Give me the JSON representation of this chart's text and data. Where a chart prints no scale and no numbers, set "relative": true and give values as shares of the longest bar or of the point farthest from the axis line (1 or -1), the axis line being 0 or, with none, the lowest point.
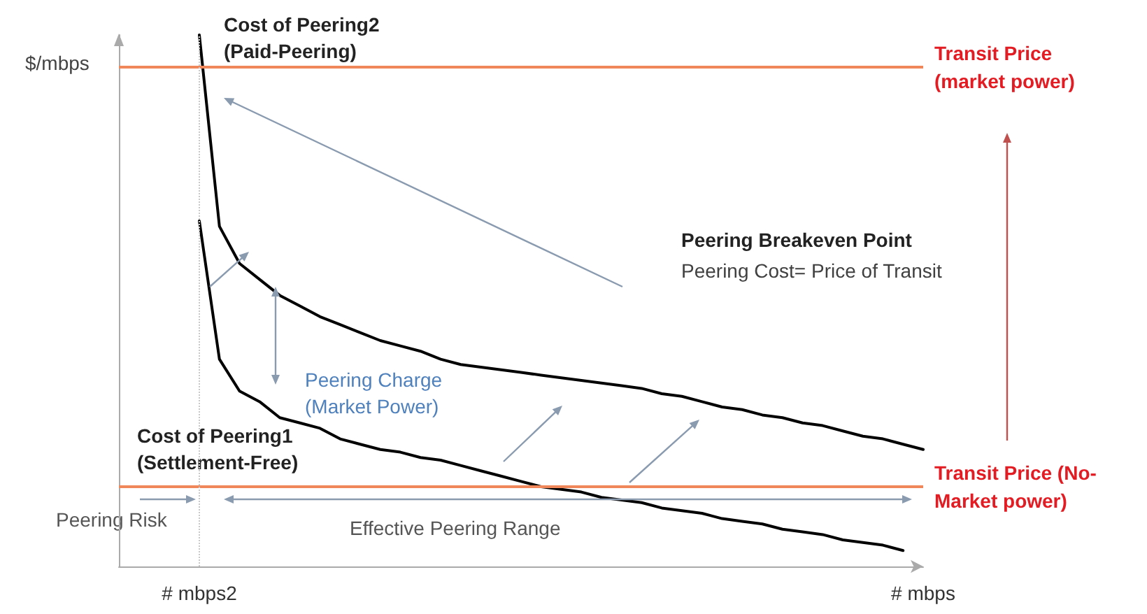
{
  "chart_data": {
    "type": "line",
    "relative": true,
    "ylabel": "$/mbps",
    "tick_labels": "x",
    "categories": [
      null,
      null,
      null,
      null,
      "# mbps2",
      null,
      null,
      null,
      null,
      null,
      null,
      null,
      null,
      null,
      null,
      null,
      null,
      null,
      null,
      null,
      null,
      null,
      null,
      null,
      null,
      null,
      null,
      null,
      null,
      null,
      null,
      null,
      null,
      null,
      null,
      null,
      null,
      null,
      null,
      null,
      "# mbps"
    ],
    "series": [
      {
        "color": "#000000",
        "values": [
          null,
          null,
          null,
          null,
          1,
          0.64,
          0.57,
          0.54,
          0.51,
          0.49,
          0.47,
          0.455,
          0.44,
          0.425,
          0.415,
          0.405,
          0.39,
          0.38,
          0.375,
          0.37,
          0.365,
          0.36,
          0.355,
          0.35,
          0.345,
          0.34,
          0.335,
          0.325,
          0.32,
          0.31,
          0.3,
          0.295,
          0.285,
          0.28,
          0.27,
          0.265,
          0.255,
          0.245,
          0.24,
          0.23,
          0.22
        ]
      },
      {
        "color": "#000000",
        "values": [
          null,
          null,
          null,
          null,
          0.65,
          0.39,
          0.33,
          0.31,
          0.28,
          0.27,
          0.26,
          0.24,
          0.23,
          0.22,
          0.215,
          0.205,
          0.2,
          0.19,
          0.18,
          0.17,
          0.16,
          0.15,
          0.145,
          0.14,
          0.13,
          0.125,
          0.12,
          0.11,
          0.105,
          0.1,
          0.09,
          0.085,
          0.08,
          0.07,
          0.065,
          0.06,
          0.05,
          0.045,
          0.04,
          0.03,
          null
        ]
      }
    ],
    "ref_lines": [
      {
        "axis": "y",
        "value": 0.94,
        "label": "Transit Price\n(market power)",
        "color": "#f0875a"
      },
      {
        "axis": "y",
        "value": 0.15,
        "label": "Transit Price (No-\nMarket power)",
        "color": "#f0875a"
      },
      {
        "axis": "x",
        "value": "# mbps2",
        "label": null,
        "color": "#c8c8c8",
        "line_style": "dotted"
      }
    ],
    "annotations": [
      "Cost of Peering2\n(Paid-Peering)",
      "Cost of Peering1\n(Settlement-Free)",
      "Peering Charge\n(Market Power)",
      "Peering Breakeven Point",
      "Peering Cost= Price of Transit",
      "Peering Risk",
      "Effective Peering Range"
    ]
  }
}
